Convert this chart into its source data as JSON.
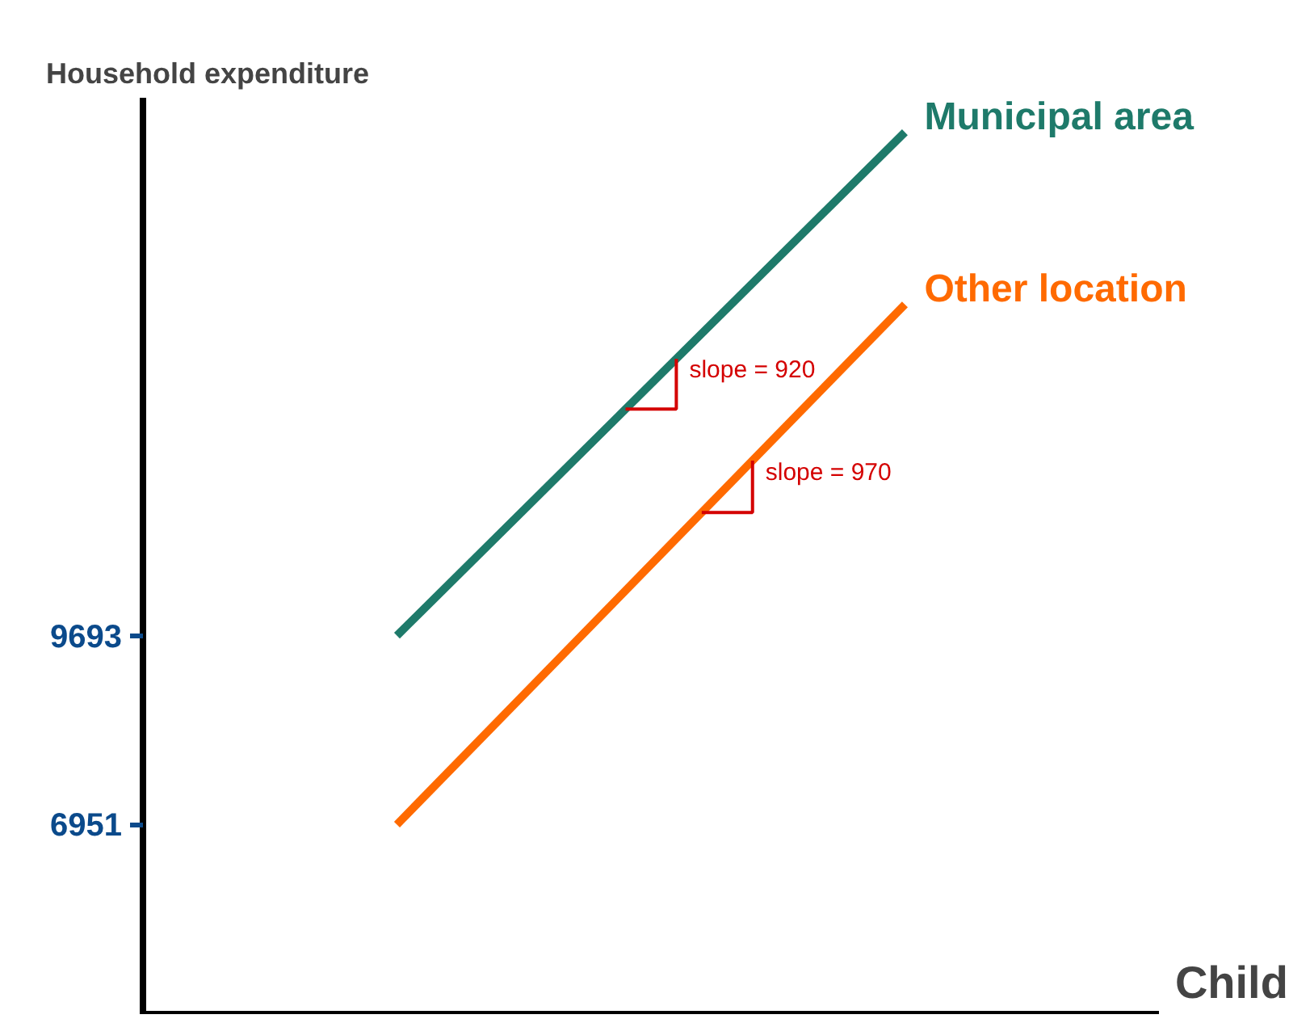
{
  "chart_data": {
    "type": "line",
    "ylabel": "Household expenditure",
    "xlabel": "Child",
    "categories": [
      null,
      null
    ],
    "series": [
      {
        "name": "Municipal area",
        "color": "#1e7a6a",
        "values": [
          9693,
          17000
        ]
      },
      {
        "name": "Other location",
        "color": "#ff6a00",
        "values": [
          6951,
          14500
        ]
      }
    ],
    "ylim": [
      4200,
      17500
    ],
    "yticks": [
      9693,
      6951
    ],
    "tick_labels": "y",
    "grid": false,
    "legend": false,
    "marker": "none",
    "line_style": "solid",
    "annotations": [
      "slope = 920",
      "slope = 970"
    ]
  }
}
